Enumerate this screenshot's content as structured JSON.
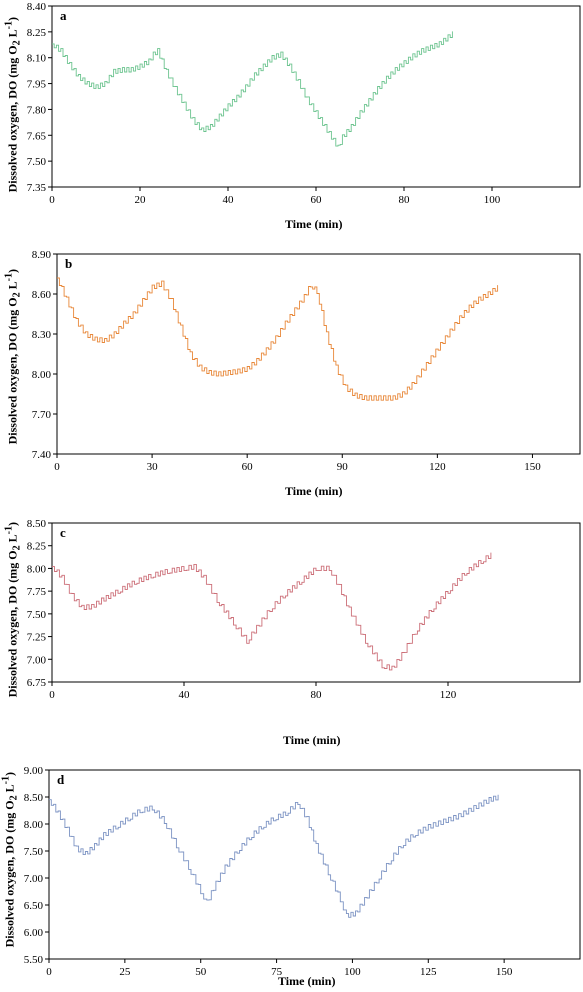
{
  "chart_data": [
    {
      "panel": "a",
      "type": "line",
      "color": "#6cc48f",
      "ylabel_main": "Dissolved oxygen, DO (mg O",
      "ylabel_sub": "2",
      "ylabel_mid": " L",
      "ylabel_sup": "-1",
      "ylabel_end": ")",
      "xlabel": "Time (min)",
      "xlim": [
        0,
        120
      ],
      "ylim": [
        7.35,
        8.4
      ],
      "xticks": [
        0,
        20,
        40,
        60,
        80,
        100
      ],
      "xtick_labels": [
        "0",
        "20",
        "40",
        "60",
        "80",
        "100"
      ],
      "yticks": [
        7.35,
        7.5,
        7.65,
        7.8,
        7.95,
        8.1,
        8.25,
        8.4
      ],
      "ytick_labels": [
        "7.35",
        "7.50",
        "7.65",
        "7.80",
        "7.95",
        "8.10",
        "8.25",
        "8.40"
      ],
      "series": [
        {
          "x": [
            0,
            2,
            4,
            6,
            8,
            10,
            12,
            14,
            16,
            18,
            20,
            22,
            23,
            24,
            26,
            28,
            30,
            32,
            34,
            36,
            38,
            40,
            42,
            44,
            46,
            48,
            50,
            52,
            54,
            56,
            58,
            60,
            62,
            64,
            65,
            66,
            68,
            70,
            72,
            74,
            76,
            78,
            80,
            82,
            84,
            86,
            88,
            90,
            91
          ],
          "y": [
            8.18,
            8.14,
            8.06,
            7.99,
            7.95,
            7.93,
            7.95,
            8.02,
            8.03,
            8.03,
            8.05,
            8.08,
            8.12,
            8.14,
            8.02,
            7.92,
            7.83,
            7.74,
            7.68,
            7.7,
            7.76,
            7.82,
            7.87,
            7.93,
            8.0,
            8.05,
            8.1,
            8.12,
            8.05,
            7.96,
            7.86,
            7.78,
            7.7,
            7.62,
            7.58,
            7.64,
            7.7,
            7.78,
            7.85,
            7.92,
            7.98,
            8.03,
            8.07,
            8.11,
            8.14,
            8.16,
            8.18,
            8.22,
            8.24
          ]
        }
      ]
    },
    {
      "panel": "b",
      "type": "line",
      "color": "#e8883a",
      "ylabel_main": "Dissolved oxygen, DO (mg O",
      "ylabel_sub": "2",
      "ylabel_mid": " L",
      "ylabel_sup": "-1",
      "ylabel_end": ")",
      "xlabel": "Time (min)",
      "xlim": [
        0,
        165
      ],
      "ylim": [
        7.4,
        8.9
      ],
      "xticks": [
        0,
        30,
        60,
        90,
        120,
        150
      ],
      "xtick_labels": [
        "0",
        "30",
        "60",
        "90",
        "120",
        "150"
      ],
      "yticks": [
        7.4,
        7.7,
        8.0,
        8.3,
        8.6,
        8.9
      ],
      "ytick_labels": [
        "7.40",
        "7.70",
        "8.00",
        "8.30",
        "8.60",
        "8.90"
      ],
      "series": [
        {
          "x": [
            0,
            3,
            6,
            9,
            12,
            15,
            18,
            21,
            24,
            27,
            30,
            33,
            36,
            39,
            42,
            45,
            48,
            51,
            54,
            57,
            60,
            63,
            66,
            69,
            72,
            75,
            78,
            80,
            82,
            85,
            88,
            91,
            94,
            97,
            100,
            103,
            106,
            109,
            112,
            115,
            118,
            121,
            124,
            127,
            130,
            133,
            136,
            139
          ],
          "y": [
            8.72,
            8.56,
            8.4,
            8.3,
            8.26,
            8.25,
            8.3,
            8.38,
            8.45,
            8.55,
            8.65,
            8.68,
            8.55,
            8.35,
            8.15,
            8.05,
            8.01,
            8.0,
            8.01,
            8.02,
            8.04,
            8.1,
            8.18,
            8.27,
            8.38,
            8.48,
            8.58,
            8.67,
            8.62,
            8.3,
            8.05,
            7.9,
            7.84,
            7.82,
            7.82,
            7.82,
            7.82,
            7.85,
            7.92,
            8.02,
            8.12,
            8.22,
            8.32,
            8.42,
            8.5,
            8.56,
            8.6,
            8.65
          ]
        }
      ]
    },
    {
      "panel": "c",
      "type": "line",
      "color": "#cc6f78",
      "ylabel_main": "Dissolved oxygen, DO (mg O",
      "ylabel_sub": "2",
      "ylabel_mid": " L",
      "ylabel_sup": "-1",
      "ylabel_end": ")",
      "xlabel": "Time (min)",
      "xlim": [
        0,
        160
      ],
      "ylim": [
        6.75,
        8.5
      ],
      "xticks": [
        0,
        40,
        80,
        120
      ],
      "xtick_labels": [
        "0",
        "40",
        "80",
        "120"
      ],
      "yticks": [
        6.75,
        7.0,
        7.25,
        7.5,
        7.75,
        8.0,
        8.25,
        8.5
      ],
      "ytick_labels": [
        "6.75",
        "7.00",
        "7.25",
        "7.50",
        "7.75",
        "8.00",
        "8.25",
        "8.50"
      ],
      "series": [
        {
          "x": [
            0,
            3,
            6,
            9,
            12,
            15,
            20,
            25,
            30,
            35,
            40,
            43,
            46,
            50,
            55,
            59,
            62,
            66,
            70,
            75,
            80,
            84,
            87,
            90,
            95,
            100,
            103,
            106,
            110,
            115,
            120,
            125,
            130,
            133
          ],
          "y": [
            8.02,
            7.9,
            7.7,
            7.57,
            7.58,
            7.65,
            7.75,
            7.85,
            7.92,
            7.97,
            8.0,
            8.02,
            7.9,
            7.65,
            7.4,
            7.2,
            7.35,
            7.55,
            7.7,
            7.85,
            8.0,
            8.0,
            7.8,
            7.55,
            7.2,
            6.93,
            6.9,
            7.05,
            7.3,
            7.55,
            7.75,
            7.95,
            8.08,
            8.15
          ]
        }
      ]
    },
    {
      "panel": "d",
      "type": "line",
      "color": "#7c93c3",
      "ylabel_main": "Dissolved oxygen, DO (mg O",
      "ylabel_sub": "2",
      "ylabel_mid": " L",
      "ylabel_sup": "-1",
      "ylabel_end": ")",
      "xlabel": "Time (min)",
      "xlim": [
        0,
        175
      ],
      "ylim": [
        5.5,
        9.0
      ],
      "xticks": [
        0,
        25,
        50,
        75,
        100,
        125,
        150
      ],
      "xtick_labels": [
        "0",
        "25",
        "50",
        "75",
        "100",
        "125",
        "150"
      ],
      "yticks": [
        5.5,
        6.0,
        6.5,
        7.0,
        7.5,
        8.0,
        8.5,
        9.0
      ],
      "ytick_labels": [
        "5.50",
        "6.00",
        "6.50",
        "7.00",
        "7.50",
        "8.00",
        "8.50",
        "9.00"
      ],
      "series": [
        {
          "x": [
            0,
            3,
            6,
            9,
            12,
            15,
            18,
            22,
            26,
            30,
            34,
            38,
            42,
            46,
            50,
            52,
            55,
            58,
            62,
            66,
            70,
            74,
            78,
            82,
            85,
            88,
            92,
            96,
            98,
            101,
            104,
            108,
            112,
            116,
            120,
            125,
            130,
            135,
            140,
            145,
            148
          ],
          "y": [
            8.45,
            8.2,
            7.9,
            7.55,
            7.45,
            7.6,
            7.8,
            7.95,
            8.1,
            8.25,
            8.3,
            8.05,
            7.6,
            7.2,
            6.75,
            6.55,
            6.9,
            7.2,
            7.5,
            7.75,
            7.95,
            8.1,
            8.2,
            8.4,
            8.1,
            7.6,
            7.1,
            6.6,
            6.3,
            6.35,
            6.6,
            6.95,
            7.3,
            7.6,
            7.8,
            7.95,
            8.05,
            8.15,
            8.3,
            8.45,
            8.5
          ]
        }
      ]
    }
  ]
}
